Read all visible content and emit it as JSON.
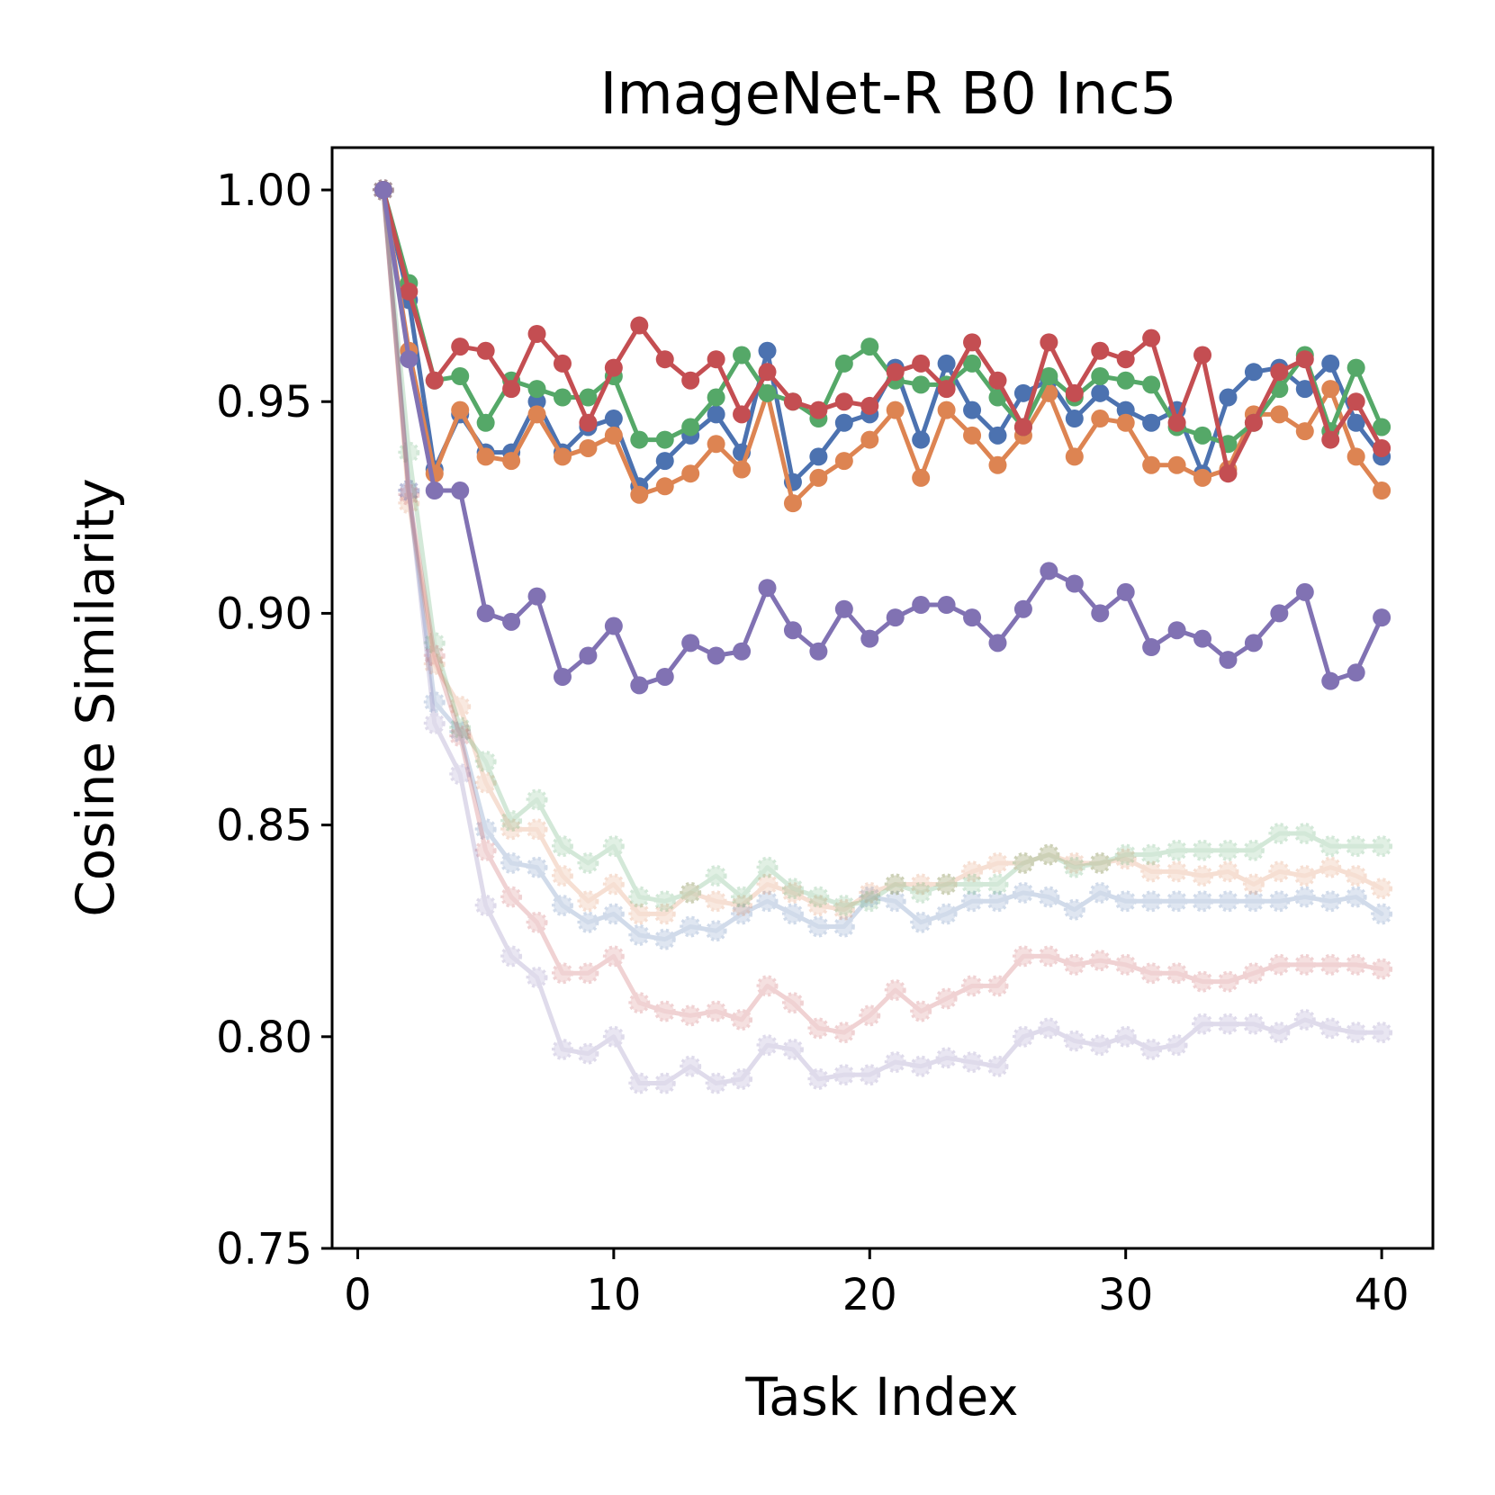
{
  "chart_data": {
    "type": "line",
    "title": "ImageNet-R B0 Inc5",
    "xlabel": "Task Index",
    "ylabel": "Cosine Similarity",
    "xlim": [
      -1,
      42
    ],
    "ylim": [
      0.75,
      1.01
    ],
    "xticks": [
      0,
      10,
      20,
      30,
      40
    ],
    "xtick_labels": [
      "0",
      "10",
      "20",
      "30",
      "40"
    ],
    "yticks": [
      0.75,
      0.8,
      0.85,
      0.9,
      0.95,
      1.0
    ],
    "ytick_labels": [
      "0.75",
      "0.80",
      "0.85",
      "0.90",
      "0.95",
      "1.00"
    ],
    "grid": false,
    "legend": "none",
    "x": [
      1,
      2,
      3,
      4,
      5,
      6,
      7,
      8,
      9,
      10,
      11,
      12,
      13,
      14,
      15,
      16,
      17,
      18,
      19,
      20,
      21,
      22,
      23,
      24,
      25,
      26,
      27,
      28,
      29,
      30,
      31,
      32,
      33,
      34,
      35,
      36,
      37,
      38,
      39,
      40
    ],
    "series": [
      {
        "name": "blue",
        "color": "#4c72b0",
        "style": "solid",
        "values": [
          1.0,
          0.974,
          0.934,
          0.947,
          0.938,
          0.938,
          0.95,
          0.938,
          0.944,
          0.946,
          0.93,
          0.936,
          0.942,
          0.947,
          0.938,
          0.962,
          0.931,
          0.937,
          0.945,
          0.947,
          0.958,
          0.941,
          0.959,
          0.948,
          0.942,
          0.952,
          0.955,
          0.946,
          0.952,
          0.948,
          0.945,
          0.948,
          0.933,
          0.951,
          0.957,
          0.958,
          0.953,
          0.959,
          0.945,
          0.937
        ]
      },
      {
        "name": "orange",
        "color": "#dd8452",
        "style": "solid",
        "values": [
          1.0,
          0.962,
          0.933,
          0.948,
          0.937,
          0.936,
          0.947,
          0.937,
          0.939,
          0.942,
          0.928,
          0.93,
          0.933,
          0.94,
          0.934,
          0.952,
          0.926,
          0.932,
          0.936,
          0.941,
          0.948,
          0.932,
          0.948,
          0.942,
          0.935,
          0.942,
          0.952,
          0.937,
          0.946,
          0.945,
          0.935,
          0.935,
          0.932,
          0.934,
          0.947,
          0.947,
          0.943,
          0.953,
          0.937,
          0.929
        ]
      },
      {
        "name": "green",
        "color": "#55a868",
        "style": "solid",
        "values": [
          1.0,
          0.978,
          0.955,
          0.956,
          0.945,
          0.955,
          0.953,
          0.951,
          0.951,
          0.956,
          0.941,
          0.941,
          0.944,
          0.951,
          0.961,
          0.952,
          0.95,
          0.946,
          0.959,
          0.963,
          0.955,
          0.954,
          0.954,
          0.959,
          0.951,
          0.944,
          0.956,
          0.951,
          0.956,
          0.955,
          0.954,
          0.944,
          0.942,
          0.94,
          0.945,
          0.953,
          0.961,
          0.943,
          0.958,
          0.944
        ]
      },
      {
        "name": "red",
        "color": "#c44e52",
        "style": "solid",
        "values": [
          1.0,
          0.976,
          0.955,
          0.963,
          0.962,
          0.953,
          0.966,
          0.959,
          0.945,
          0.958,
          0.968,
          0.96,
          0.955,
          0.96,
          0.947,
          0.957,
          0.95,
          0.948,
          0.95,
          0.949,
          0.957,
          0.959,
          0.953,
          0.964,
          0.955,
          0.944,
          0.964,
          0.952,
          0.962,
          0.96,
          0.965,
          0.945,
          0.961,
          0.933,
          0.945,
          0.957,
          0.96,
          0.941,
          0.95,
          0.939
        ]
      },
      {
        "name": "purple",
        "color": "#8172b3",
        "style": "solid",
        "values": [
          1.0,
          0.96,
          0.929,
          0.929,
          0.9,
          0.898,
          0.904,
          0.885,
          0.89,
          0.897,
          0.883,
          0.885,
          0.893,
          0.89,
          0.891,
          0.906,
          0.896,
          0.891,
          0.901,
          0.894,
          0.899,
          0.902,
          0.902,
          0.899,
          0.893,
          0.901,
          0.91,
          0.907,
          0.9,
          0.905,
          0.892,
          0.896,
          0.894,
          0.889,
          0.893,
          0.9,
          0.905,
          0.884,
          0.886,
          0.899
        ]
      },
      {
        "name": "blue-faded",
        "color": "#4c72b0",
        "style": "faded",
        "values": [
          1.0,
          0.929,
          0.879,
          0.872,
          0.849,
          0.841,
          0.84,
          0.831,
          0.827,
          0.829,
          0.824,
          0.823,
          0.826,
          0.825,
          0.829,
          0.832,
          0.829,
          0.826,
          0.826,
          0.833,
          0.832,
          0.827,
          0.829,
          0.832,
          0.832,
          0.834,
          0.833,
          0.83,
          0.834,
          0.832,
          0.832,
          0.832,
          0.832,
          0.832,
          0.832,
          0.832,
          0.833,
          0.832,
          0.833,
          0.829
        ]
      },
      {
        "name": "orange-faded",
        "color": "#dd8452",
        "style": "faded",
        "values": [
          1.0,
          0.926,
          0.888,
          0.878,
          0.86,
          0.849,
          0.849,
          0.838,
          0.832,
          0.836,
          0.829,
          0.829,
          0.834,
          0.832,
          0.831,
          0.836,
          0.834,
          0.831,
          0.83,
          0.834,
          0.836,
          0.836,
          0.836,
          0.839,
          0.841,
          0.841,
          0.843,
          0.841,
          0.841,
          0.842,
          0.839,
          0.839,
          0.838,
          0.839,
          0.836,
          0.839,
          0.838,
          0.84,
          0.838,
          0.835
        ]
      },
      {
        "name": "green-faded",
        "color": "#55a868",
        "style": "faded",
        "values": [
          1.0,
          0.938,
          0.893,
          0.873,
          0.865,
          0.851,
          0.856,
          0.845,
          0.841,
          0.845,
          0.833,
          0.832,
          0.834,
          0.838,
          0.833,
          0.84,
          0.835,
          0.833,
          0.831,
          0.832,
          0.836,
          0.834,
          0.836,
          0.836,
          0.836,
          0.841,
          0.843,
          0.84,
          0.841,
          0.843,
          0.843,
          0.844,
          0.844,
          0.844,
          0.844,
          0.848,
          0.848,
          0.845,
          0.845,
          0.845
        ]
      },
      {
        "name": "red-faded",
        "color": "#c44e52",
        "style": "faded",
        "values": [
          1.0,
          0.928,
          0.89,
          0.871,
          0.844,
          0.833,
          0.827,
          0.815,
          0.815,
          0.819,
          0.808,
          0.806,
          0.805,
          0.806,
          0.804,
          0.812,
          0.808,
          0.802,
          0.801,
          0.805,
          0.811,
          0.806,
          0.809,
          0.812,
          0.812,
          0.819,
          0.819,
          0.817,
          0.818,
          0.817,
          0.815,
          0.815,
          0.813,
          0.813,
          0.815,
          0.817,
          0.817,
          0.817,
          0.817,
          0.816
        ]
      },
      {
        "name": "purple-faded",
        "color": "#8172b3",
        "style": "faded",
        "values": [
          1.0,
          0.929,
          0.874,
          0.862,
          0.831,
          0.819,
          0.814,
          0.797,
          0.796,
          0.8,
          0.789,
          0.789,
          0.793,
          0.789,
          0.79,
          0.798,
          0.797,
          0.79,
          0.791,
          0.791,
          0.794,
          0.793,
          0.795,
          0.794,
          0.793,
          0.8,
          0.802,
          0.799,
          0.798,
          0.8,
          0.797,
          0.798,
          0.803,
          0.803,
          0.803,
          0.801,
          0.804,
          0.802,
          0.801,
          0.801
        ]
      }
    ]
  }
}
